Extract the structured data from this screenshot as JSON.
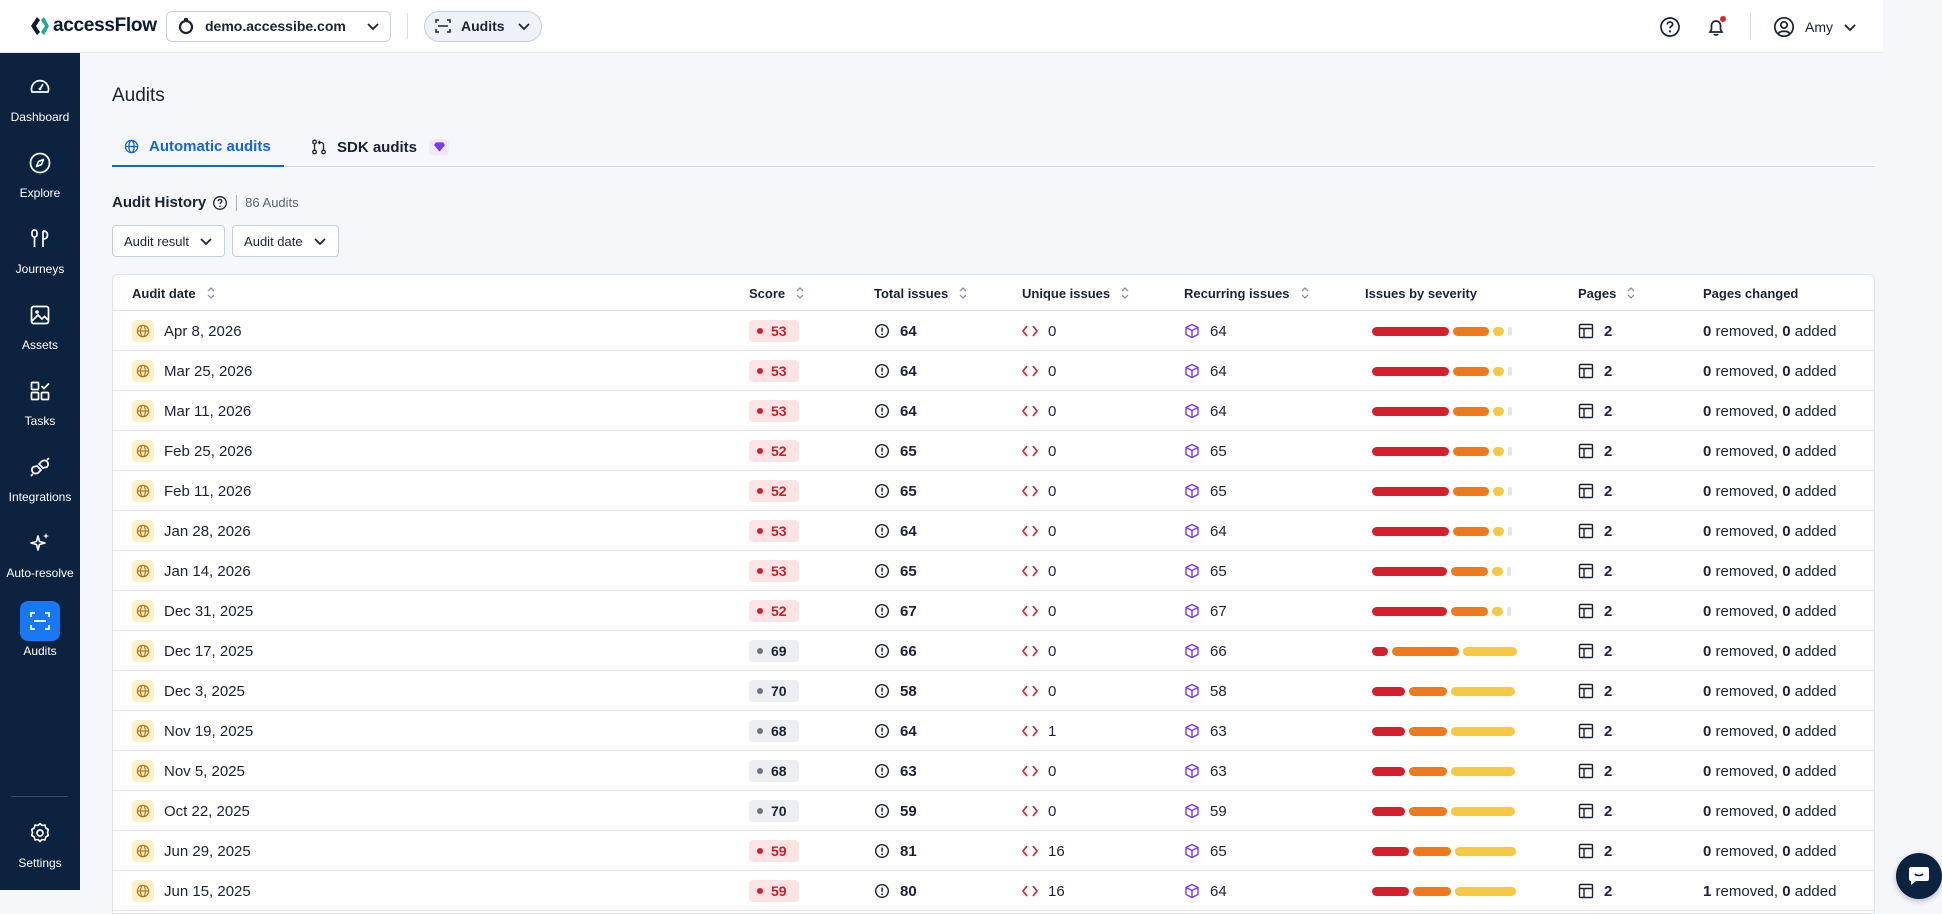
{
  "topbar": {
    "logo_text": "accessFlow",
    "site": "demo.accessibe.com",
    "module": "Audits",
    "user_name": "Amy",
    "has_notification": true
  },
  "sidebar": {
    "items": [
      {
        "label": "Dashboard",
        "icon": "gauge-icon",
        "active": false
      },
      {
        "label": "Explore",
        "icon": "compass-icon",
        "active": false
      },
      {
        "label": "Journeys",
        "icon": "journey-icon",
        "active": false
      },
      {
        "label": "Assets",
        "icon": "image-icon",
        "active": false
      },
      {
        "label": "Tasks",
        "icon": "tasks-icon",
        "active": false
      },
      {
        "label": "Integrations",
        "icon": "plug-icon",
        "active": false
      },
      {
        "label": "Auto-resolve",
        "icon": "sparkle-icon",
        "active": false
      },
      {
        "label": "Audits",
        "icon": "scan-icon",
        "active": true
      }
    ],
    "settings_label": "Settings"
  },
  "page": {
    "title": "Audits",
    "tabs": [
      {
        "label": "Automatic audits",
        "active": true
      },
      {
        "label": "SDK audits",
        "active": false
      }
    ],
    "history_title": "Audit History",
    "history_count": "86 Audits",
    "filters": [
      "Audit result",
      "Audit date"
    ]
  },
  "table": {
    "columns": [
      "Audit date",
      "Score",
      "Total issues",
      "Unique issues",
      "Recurring issues",
      "Issues by severity",
      "Pages",
      "Pages changed"
    ],
    "removed_word": "removed,",
    "added_word": "added",
    "rows": [
      {
        "date": "Apr 8, 2026",
        "score": "53",
        "score_level": "red",
        "total": "64",
        "unique": "0",
        "recurring": "64",
        "severity": [
          0.56,
          0.26,
          0.08,
          0.03
        ],
        "pages": "2",
        "removed": "0",
        "added": "0"
      },
      {
        "date": "Mar 25, 2026",
        "score": "53",
        "score_level": "red",
        "total": "64",
        "unique": "0",
        "recurring": "64",
        "severity": [
          0.56,
          0.26,
          0.08,
          0.03
        ],
        "pages": "2",
        "removed": "0",
        "added": "0"
      },
      {
        "date": "Mar 11, 2026",
        "score": "53",
        "score_level": "red",
        "total": "64",
        "unique": "0",
        "recurring": "64",
        "severity": [
          0.56,
          0.26,
          0.08,
          0.03
        ],
        "pages": "2",
        "removed": "0",
        "added": "0"
      },
      {
        "date": "Feb 25, 2026",
        "score": "52",
        "score_level": "red",
        "total": "65",
        "unique": "0",
        "recurring": "65",
        "severity": [
          0.56,
          0.26,
          0.08,
          0.03
        ],
        "pages": "2",
        "removed": "0",
        "added": "0"
      },
      {
        "date": "Feb 11, 2026",
        "score": "52",
        "score_level": "red",
        "total": "65",
        "unique": "0",
        "recurring": "65",
        "severity": [
          0.56,
          0.26,
          0.08,
          0.03
        ],
        "pages": "2",
        "removed": "0",
        "added": "0"
      },
      {
        "date": "Jan 28, 2026",
        "score": "53",
        "score_level": "red",
        "total": "64",
        "unique": "0",
        "recurring": "64",
        "severity": [
          0.56,
          0.26,
          0.08,
          0.03
        ],
        "pages": "2",
        "removed": "0",
        "added": "0"
      },
      {
        "date": "Jan 14, 2026",
        "score": "53",
        "score_level": "red",
        "total": "65",
        "unique": "0",
        "recurring": "65",
        "severity": [
          0.54,
          0.27,
          0.08,
          0.03
        ],
        "pages": "2",
        "removed": "0",
        "added": "0"
      },
      {
        "date": "Dec 31, 2025",
        "score": "52",
        "score_level": "red",
        "total": "67",
        "unique": "0",
        "recurring": "67",
        "severity": [
          0.54,
          0.27,
          0.08,
          0.03
        ],
        "pages": "2",
        "removed": "0",
        "added": "0"
      },
      {
        "date": "Dec 17, 2025",
        "score": "69",
        "score_level": "grey",
        "total": "66",
        "unique": "0",
        "recurring": "66",
        "severity": [
          0.11,
          0.47,
          0.38,
          0
        ],
        "pages": "2",
        "removed": "0",
        "added": "0"
      },
      {
        "date": "Dec 3, 2025",
        "score": "70",
        "score_level": "grey",
        "total": "58",
        "unique": "0",
        "recurring": "58",
        "severity": [
          0.23,
          0.27,
          0.45,
          0
        ],
        "pages": "2",
        "removed": "0",
        "added": "0"
      },
      {
        "date": "Nov 19, 2025",
        "score": "68",
        "score_level": "grey",
        "total": "64",
        "unique": "1",
        "recurring": "63",
        "severity": [
          0.23,
          0.27,
          0.45,
          0
        ],
        "pages": "2",
        "removed": "0",
        "added": "0"
      },
      {
        "date": "Nov 5, 2025",
        "score": "68",
        "score_level": "grey",
        "total": "63",
        "unique": "0",
        "recurring": "63",
        "severity": [
          0.23,
          0.27,
          0.45,
          0
        ],
        "pages": "2",
        "removed": "0",
        "added": "0"
      },
      {
        "date": "Oct 22, 2025",
        "score": "70",
        "score_level": "grey",
        "total": "59",
        "unique": "0",
        "recurring": "59",
        "severity": [
          0.23,
          0.27,
          0.45,
          0
        ],
        "pages": "2",
        "removed": "0",
        "added": "0"
      },
      {
        "date": "Jun 29, 2025",
        "score": "59",
        "score_level": "red",
        "total": "81",
        "unique": "16",
        "recurring": "65",
        "severity": [
          0.26,
          0.27,
          0.43,
          0
        ],
        "pages": "2",
        "removed": "0",
        "added": "0"
      },
      {
        "date": "Jun 15, 2025",
        "score": "59",
        "score_level": "red",
        "total": "80",
        "unique": "16",
        "recurring": "64",
        "severity": [
          0.26,
          0.27,
          0.43,
          0
        ],
        "pages": "2",
        "removed": "1",
        "added": "0"
      }
    ]
  },
  "colors": {
    "critical": "#d61f2c",
    "serious": "#f07a1a",
    "moderate": "#f7c940",
    "minor": "#e2e5ea",
    "accent": "#1466d8",
    "sidebar": "#0c2340"
  }
}
